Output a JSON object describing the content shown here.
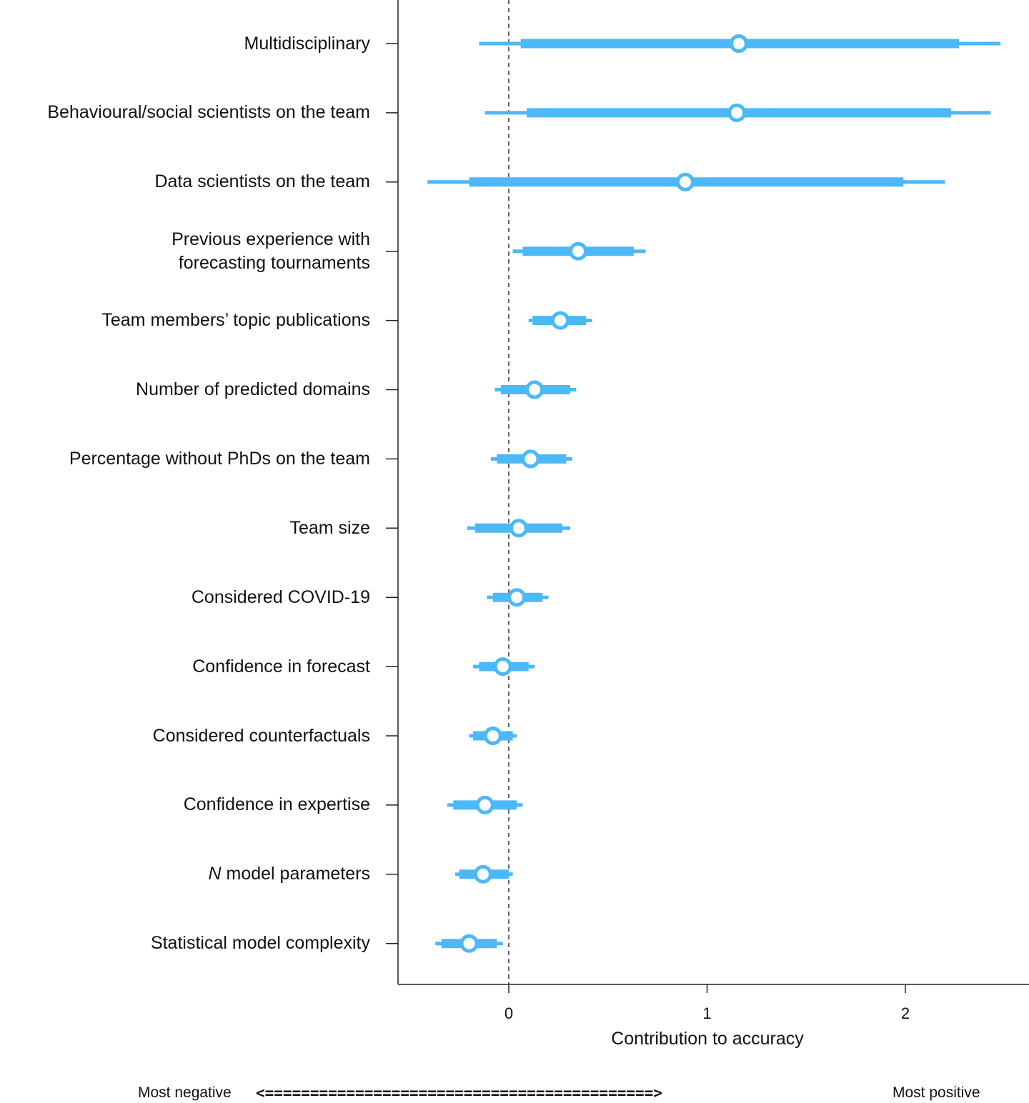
{
  "chart_data": {
    "type": "forest",
    "title": "",
    "xlabel": "Contribution to accuracy",
    "ylabel": "",
    "xlim": [
      -0.56,
      2.62
    ],
    "xticks": [
      0,
      1,
      2
    ],
    "xtick_labels": [
      "0",
      "1",
      "2"
    ],
    "reference_line": 0,
    "series_color": "#4db8f8",
    "rows": [
      {
        "label": "Multidisciplinary",
        "estimate": 1.16,
        "inner": [
          0.06,
          2.27
        ],
        "outer": [
          -0.15,
          2.48
        ]
      },
      {
        "label": "Behavioural/social scientists on the team",
        "estimate": 1.15,
        "inner": [
          0.09,
          2.23
        ],
        "outer": [
          -0.12,
          2.43
        ]
      },
      {
        "label": "Data scientists on the team",
        "estimate": 0.89,
        "inner": [
          -0.2,
          1.99
        ],
        "outer": [
          -0.41,
          2.2
        ]
      },
      {
        "label": "Previous experience with\nforecasting tournaments",
        "estimate": 0.35,
        "inner": [
          0.07,
          0.63
        ],
        "outer": [
          0.02,
          0.69
        ]
      },
      {
        "label": "Team members’ topic publications",
        "estimate": 0.26,
        "inner": [
          0.12,
          0.39
        ],
        "outer": [
          0.1,
          0.42
        ]
      },
      {
        "label": "Number of predicted domains",
        "estimate": 0.13,
        "inner": [
          -0.04,
          0.31
        ],
        "outer": [
          -0.07,
          0.34
        ]
      },
      {
        "label": "Percentage without PhDs on the team",
        "estimate": 0.11,
        "inner": [
          -0.06,
          0.29
        ],
        "outer": [
          -0.09,
          0.32
        ]
      },
      {
        "label": "Team size",
        "estimate": 0.05,
        "inner": [
          -0.17,
          0.27
        ],
        "outer": [
          -0.21,
          0.31
        ]
      },
      {
        "label": "Considered COVID-19",
        "estimate": 0.04,
        "inner": [
          -0.08,
          0.17
        ],
        "outer": [
          -0.11,
          0.2
        ]
      },
      {
        "label": "Confidence in forecast",
        "estimate": -0.03,
        "inner": [
          -0.15,
          0.1
        ],
        "outer": [
          -0.18,
          0.13
        ]
      },
      {
        "label": "Considered counterfactuals",
        "estimate": -0.08,
        "inner": [
          -0.18,
          0.02
        ],
        "outer": [
          -0.2,
          0.04
        ]
      },
      {
        "label": "Confidence in expertise",
        "estimate": -0.12,
        "inner": [
          -0.28,
          0.04
        ],
        "outer": [
          -0.31,
          0.07
        ]
      },
      {
        "label": "N model parameters",
        "estimate": -0.13,
        "inner": [
          -0.25,
          0
        ],
        "outer": [
          -0.27,
          0.02
        ]
      },
      {
        "label": "Statistical model complexity",
        "estimate": -0.2,
        "inner": [
          -0.34,
          -0.06
        ],
        "outer": [
          -0.37,
          -0.03
        ]
      }
    ],
    "footer": {
      "left": "Most negative",
      "arrow": "<===========================================>",
      "right": "Most positive"
    }
  }
}
